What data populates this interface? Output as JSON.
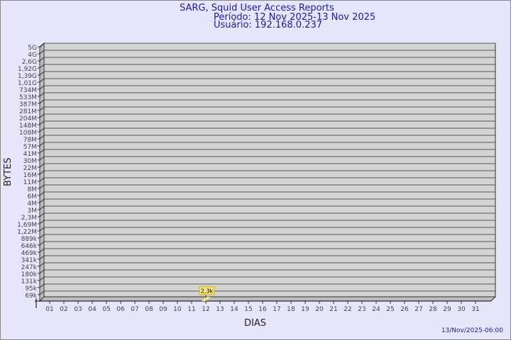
{
  "chart_data": {
    "type": "bar",
    "title": "SARG, Squid User Access Reports",
    "subtitle_period": "Período: 12 Nov 2025-13 Nov 2025",
    "subtitle_user": "Usuário: 192.168.0.237",
    "xlabel": "DIAS",
    "ylabel": "BYTES",
    "yscale": "log",
    "ytick_labels": [
      "5G",
      "4G",
      "2,6G",
      "1,92G",
      "1,39G",
      "1,01G",
      "734M",
      "533M",
      "387M",
      "281M",
      "204M",
      "148M",
      "108M",
      "78M",
      "57M",
      "41M",
      "30M",
      "22M",
      "16M",
      "11M",
      "8M",
      "6M",
      "4M",
      "3M",
      "2,3M",
      "1,69M",
      "1,22M",
      "889k",
      "646k",
      "469k",
      "341k",
      "247k",
      "180k",
      "131k",
      "95k",
      "69k"
    ],
    "categories": [
      "01",
      "02",
      "03",
      "04",
      "05",
      "06",
      "07",
      "08",
      "09",
      "10",
      "11",
      "12",
      "13",
      "14",
      "15",
      "16",
      "17",
      "18",
      "19",
      "20",
      "21",
      "22",
      "23",
      "24",
      "25",
      "26",
      "27",
      "28",
      "29",
      "30",
      "31"
    ],
    "bars": [
      {
        "day": "12",
        "value": 2300,
        "label": "2,3k"
      }
    ],
    "grid": true,
    "colors": {
      "background": "#e6e6fa",
      "plot": "#d3d3d3",
      "bar": "#ffe680",
      "title": "#1c1ca0"
    }
  },
  "footer": {
    "timestamp": "13/Nov/2025-06:00"
  }
}
